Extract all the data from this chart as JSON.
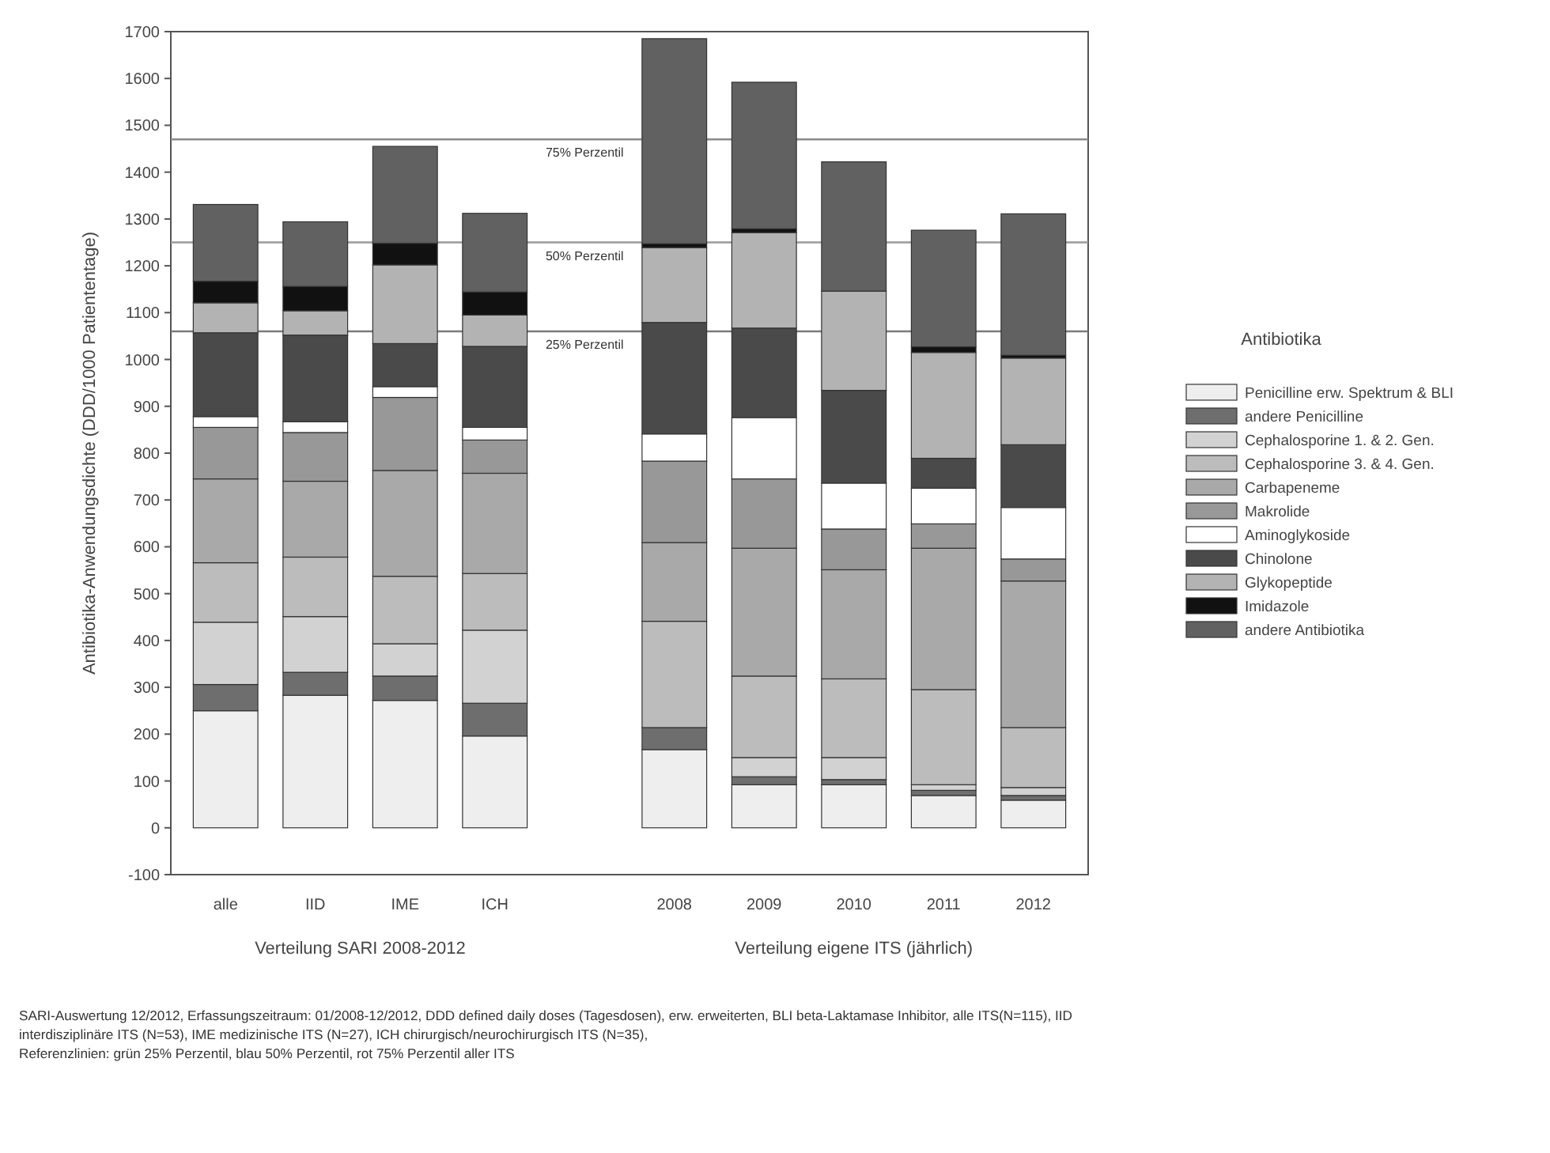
{
  "chart_data": {
    "type": "bar",
    "stacked": true,
    "ylabel": "Antibiotika-Anwendungsdichte (DDD/1000 Patiententage)",
    "legend_title": "Antibiotika",
    "legend": "right",
    "grid": false,
    "categories": [
      "alle",
      "IID",
      "IME",
      "ICH",
      null,
      "2008",
      "2009",
      "2010",
      "2011",
      "2012"
    ],
    "ylim": [
      -100,
      1700
    ],
    "yticks": [
      -100,
      0,
      100,
      200,
      300,
      400,
      500,
      600,
      700,
      800,
      900,
      1000,
      1100,
      1200,
      1300,
      1400,
      1500,
      1600,
      1700
    ],
    "series": [
      {
        "name": "Penicilline erw. Spektrum & BLI",
        "color": "#eeeeee",
        "values": [
          250,
          283,
          272,
          196,
          null,
          167,
          92,
          92,
          69,
          59
        ]
      },
      {
        "name": "andere Penicilline",
        "color": "#6e6e6e",
        "values": [
          56,
          49,
          52,
          70,
          null,
          47,
          17,
          11,
          11,
          10
        ]
      },
      {
        "name": "Cephalosporine 1. & 2. Gen.",
        "color": "#d2d2d2",
        "values": [
          133,
          119,
          69,
          156,
          null,
          0,
          41,
          47,
          12,
          17
        ]
      },
      {
        "name": "Cephalosporine 3. & 4. Gen.",
        "color": "#bcbcbc",
        "values": [
          127,
          127,
          144,
          121,
          null,
          227,
          174,
          168,
          203,
          128
        ]
      },
      {
        "name": "Carbapeneme",
        "color": "#a9a9a9",
        "values": [
          179,
          162,
          226,
          214,
          null,
          168,
          273,
          233,
          302,
          313
        ]
      },
      {
        "name": "Makrolide",
        "color": "#989898",
        "values": [
          110,
          104,
          156,
          71,
          null,
          174,
          148,
          87,
          52,
          47
        ]
      },
      {
        "name": "Aminoglykoside",
        "color": "#ffffff",
        "values": [
          23,
          23,
          23,
          27,
          null,
          58,
          131,
          98,
          76,
          110
        ]
      },
      {
        "name": "Chinolone",
        "color": "#4a4a4a",
        "values": [
          179,
          185,
          92,
          173,
          null,
          238,
          191,
          198,
          64,
          134
        ]
      },
      {
        "name": "Glykopeptide",
        "color": "#b3b3b3",
        "values": [
          64,
          52,
          168,
          67,
          null,
          160,
          204,
          212,
          226,
          185
        ]
      },
      {
        "name": "Imidazole",
        "color": "#111111",
        "values": [
          46,
          52,
          46,
          49,
          null,
          8,
          8,
          0,
          12,
          6
        ]
      },
      {
        "name": "andere Antibiotika",
        "color": "#616161",
        "values": [
          164,
          138,
          207,
          168,
          null,
          438,
          313,
          276,
          249,
          302
        ]
      }
    ],
    "ref_lines": [
      {
        "axis": "y",
        "value": 1060,
        "label": "25% Perzentil",
        "color": "#7a7a7a"
      },
      {
        "axis": "y",
        "value": 1250,
        "label": "50% Perzentil",
        "color": "#9a9a9a"
      },
      {
        "axis": "y",
        "value": 1470,
        "label": "75% Perzentil",
        "color": "#8a8a8a"
      }
    ],
    "annotations": [
      "Verteilung SARI 2008-2012",
      "Verteilung eigene ITS (jährlich)",
      "SARI-Auswertung 12/2012, Erfassungszeitraum: 01/2008-12/2012, DDD defined daily doses (Tagesdosen), erw. erweiterten, BLI beta-Laktamase Inhibitor, alle ITS(N=115), IID interdisziplinäre ITS (N=53), IME medizinische ITS (N=27), ICH chirurgisch/neurochirurgisch ITS (N=35),",
      "Referenzlinien: grün 25% Perzentil, blau 50% Perzentil, rot 75% Perzentil aller ITS"
    ]
  }
}
